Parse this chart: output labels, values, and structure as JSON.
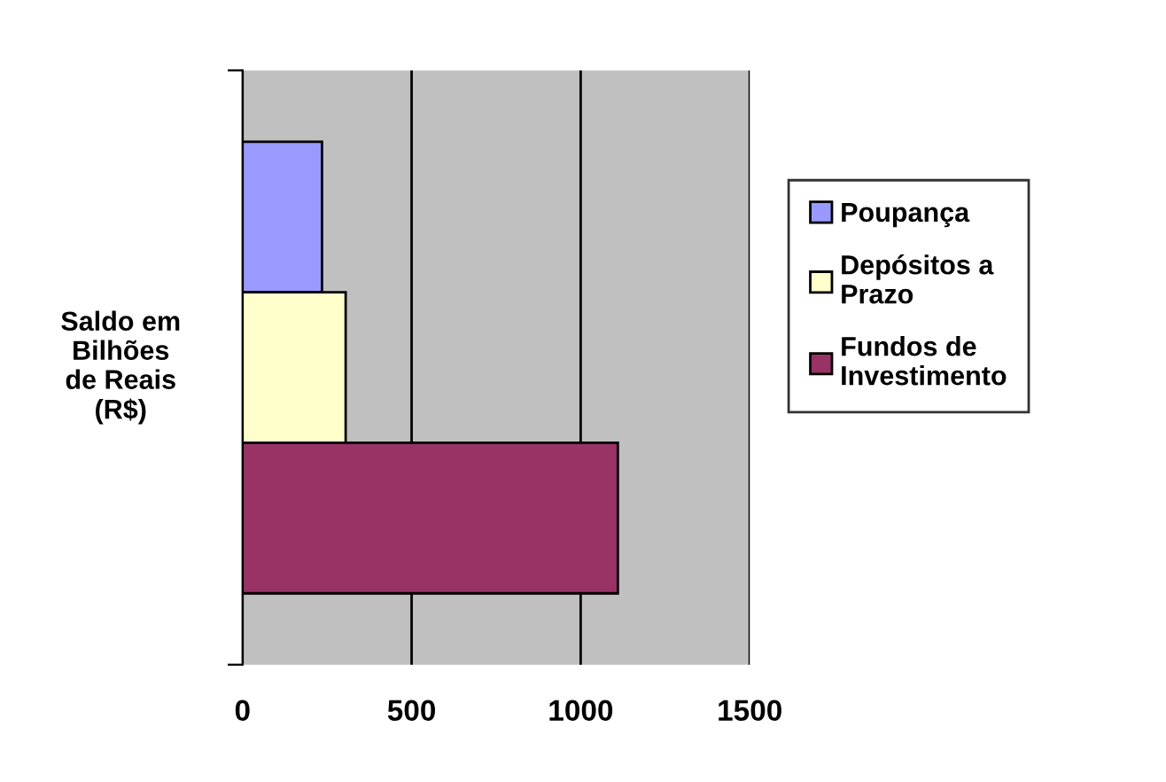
{
  "chart_data": {
    "type": "bar",
    "orientation": "horizontal",
    "ylabel": "Saldo em\nBilhões\nde Reais\n(R$)",
    "categories": [
      null
    ],
    "series": [
      {
        "name": "Poupança",
        "color": "#9999ff",
        "values": [
          235
        ]
      },
      {
        "name": "Depósitos a\nPrazo",
        "color": "#ffffcc",
        "values": [
          305
        ]
      },
      {
        "name": "Fundos de\nInvestimento",
        "color": "#993366",
        "values": [
          1110
        ]
      }
    ],
    "xlim": [
      0,
      1500
    ],
    "xticks": [
      0,
      500,
      1000,
      1500
    ],
    "grid": "x",
    "legend": "right"
  }
}
